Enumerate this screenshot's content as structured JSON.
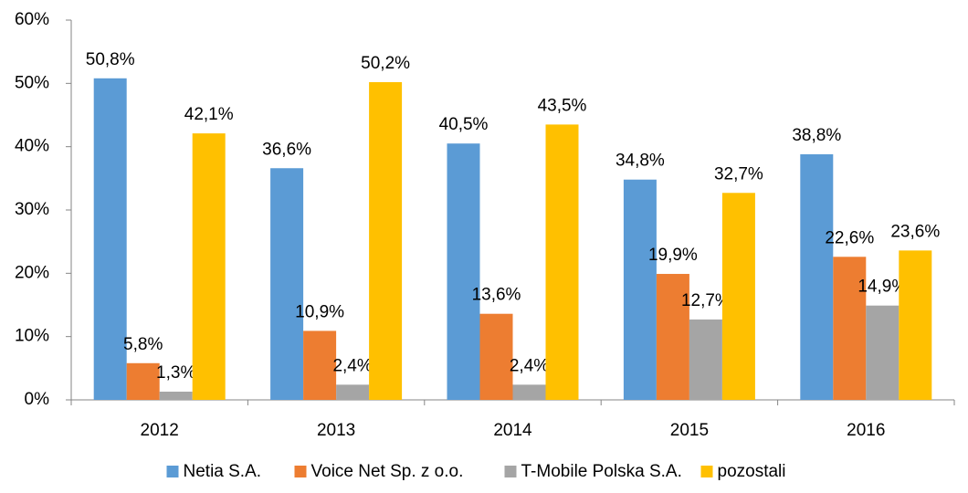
{
  "chart_data": {
    "type": "bar",
    "categories": [
      "2012",
      "2013",
      "2014",
      "2015",
      "2016"
    ],
    "series": [
      {
        "name": "Netia S.A.",
        "color": "#5b9bd5",
        "values": [
          50.8,
          36.6,
          40.5,
          34.8,
          38.8
        ],
        "value_labels": [
          "50,8%",
          "36,6%",
          "40,5%",
          "34,8%",
          "38,8%"
        ]
      },
      {
        "name": "Voice Net Sp. z o.o.",
        "color": "#ed7d31",
        "values": [
          5.8,
          10.9,
          13.6,
          19.9,
          22.6
        ],
        "value_labels": [
          "5,8%",
          "10,9%",
          "13,6%",
          "19,9%",
          "22,6%"
        ]
      },
      {
        "name": "T-Mobile Polska S.A.",
        "color": "#a5a5a5",
        "values": [
          1.3,
          2.4,
          2.4,
          12.7,
          14.9
        ],
        "value_labels": [
          "1,3%",
          "2,4%",
          "2,4%",
          "12,7%",
          "14,9%"
        ]
      },
      {
        "name": "pozostali",
        "color": "#ffc000",
        "values": [
          42.1,
          50.2,
          43.5,
          32.7,
          23.6
        ],
        "value_labels": [
          "42,1%",
          "50,2%",
          "43,5%",
          "32,7%",
          "23,6%"
        ]
      }
    ],
    "ylim": [
      0,
      60
    ],
    "yticks": [
      {
        "value": 0,
        "label": "0%"
      },
      {
        "value": 10,
        "label": "10%"
      },
      {
        "value": 20,
        "label": "20%"
      },
      {
        "value": 30,
        "label": "30%"
      },
      {
        "value": 40,
        "label": "40%"
      },
      {
        "value": 50,
        "label": "50%"
      },
      {
        "value": 60,
        "label": "60%"
      }
    ],
    "legend": "bottom"
  }
}
